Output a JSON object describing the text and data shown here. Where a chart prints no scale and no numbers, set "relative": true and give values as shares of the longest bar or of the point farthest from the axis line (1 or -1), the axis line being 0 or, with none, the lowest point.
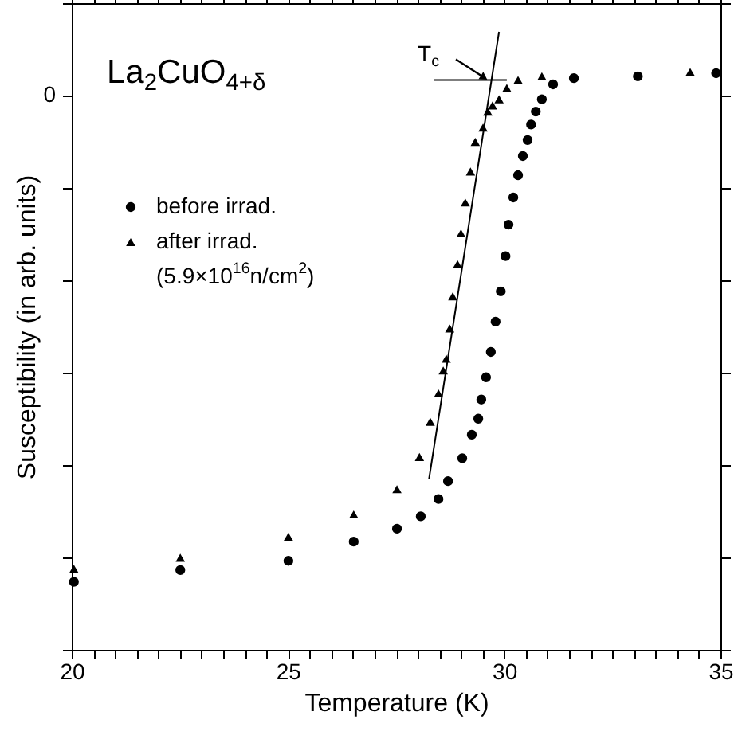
{
  "chart_data": {
    "type": "scatter",
    "title": "La$_{2}$CuO$_{4+δ}$",
    "xlabel": "Temperature (K)",
    "ylabel": "Susceptibility (in arb. units)",
    "relative": true,
    "xlim": [
      20,
      35
    ],
    "xticks": [
      20,
      {
        "value": 20.5,
        "label": null
      },
      {
        "value": 21,
        "label": null
      },
      {
        "value": 21.5,
        "label": null
      },
      {
        "value": 22,
        "label": null
      },
      {
        "value": 22.5,
        "label": null
      },
      {
        "value": 23,
        "label": null
      },
      {
        "value": 23.5,
        "label": null
      },
      {
        "value": 24,
        "label": null
      },
      {
        "value": 24.5,
        "label": null
      },
      25,
      {
        "value": 25.5,
        "label": null
      },
      {
        "value": 26,
        "label": null
      },
      {
        "value": 26.5,
        "label": null
      },
      {
        "value": 27,
        "label": null
      },
      {
        "value": 27.5,
        "label": null
      },
      {
        "value": 28,
        "label": null
      },
      {
        "value": 28.5,
        "label": null
      },
      {
        "value": 29,
        "label": null
      },
      {
        "value": 29.5,
        "label": null
      },
      30,
      {
        "value": 30.5,
        "label": null
      },
      {
        "value": 31,
        "label": null
      },
      {
        "value": 31.5,
        "label": null
      },
      {
        "value": 32,
        "label": null
      },
      {
        "value": 32.5,
        "label": null
      },
      {
        "value": 33,
        "label": null
      },
      {
        "value": 33.5,
        "label": null
      },
      {
        "value": 34,
        "label": null
      },
      {
        "value": 34.5,
        "label": null
      },
      35
    ],
    "grid": false,
    "legend": "top left",
    "series": [
      {
        "name": "before irrad.",
        "color": "#000000",
        "marker": "circle",
        "x": [
          20.05,
          22.51,
          25.01,
          26.52,
          27.52,
          28.07,
          28.48,
          28.7,
          29.03,
          29.25,
          29.4,
          29.47,
          29.58,
          29.69,
          29.8,
          29.92,
          30.03,
          30.1,
          30.21,
          30.32,
          30.43,
          30.54,
          30.62,
          30.73,
          30.87,
          31.13,
          31.61,
          33.09,
          34.9
        ],
        "values": [
          0.11,
          0.129,
          0.144,
          0.175,
          0.196,
          0.216,
          0.244,
          0.273,
          0.31,
          0.348,
          0.374,
          0.405,
          0.441,
          0.482,
          0.531,
          0.58,
          0.637,
          0.688,
          0.732,
          0.768,
          0.799,
          0.825,
          0.85,
          0.871,
          0.891,
          0.915,
          0.925,
          0.928,
          0.933
        ]
      },
      {
        "name": "after irrad.\n(5.9×10$^{16}$n/cm$^{2}$)",
        "color": "#000000",
        "marker": "triangle",
        "x": [
          20.05,
          22.51,
          25.01,
          26.52,
          27.52,
          28.04,
          28.29,
          28.48,
          28.59,
          28.66,
          28.74,
          28.81,
          28.92,
          29.0,
          29.1,
          29.22,
          29.33,
          29.51,
          29.62,
          29.73,
          29.88,
          30.06,
          30.32,
          30.87,
          34.3
        ],
        "values": [
          0.131,
          0.149,
          0.183,
          0.219,
          0.26,
          0.312,
          0.369,
          0.415,
          0.452,
          0.471,
          0.52,
          0.572,
          0.624,
          0.674,
          0.724,
          0.774,
          0.822,
          0.845,
          0.871,
          0.881,
          0.891,
          0.909,
          0.922,
          0.928,
          0.935
        ]
      },
      {
        "type": "line",
        "color": "#000000",
        "marker": "none",
        "x": [
          28.26,
          29.88
        ],
        "values": [
          0.276,
          1.0
        ]
      },
      {
        "type": "line",
        "color": "#000000",
        "marker": "none",
        "x": [
          28.37,
          30.06
        ],
        "values": [
          0.922,
          0.922
        ]
      }
    ],
    "annotations": [
      {
        "text": "T$_{c}$",
        "x": 29.62,
        "y": 0.922
      },
      "0"
    ]
  }
}
